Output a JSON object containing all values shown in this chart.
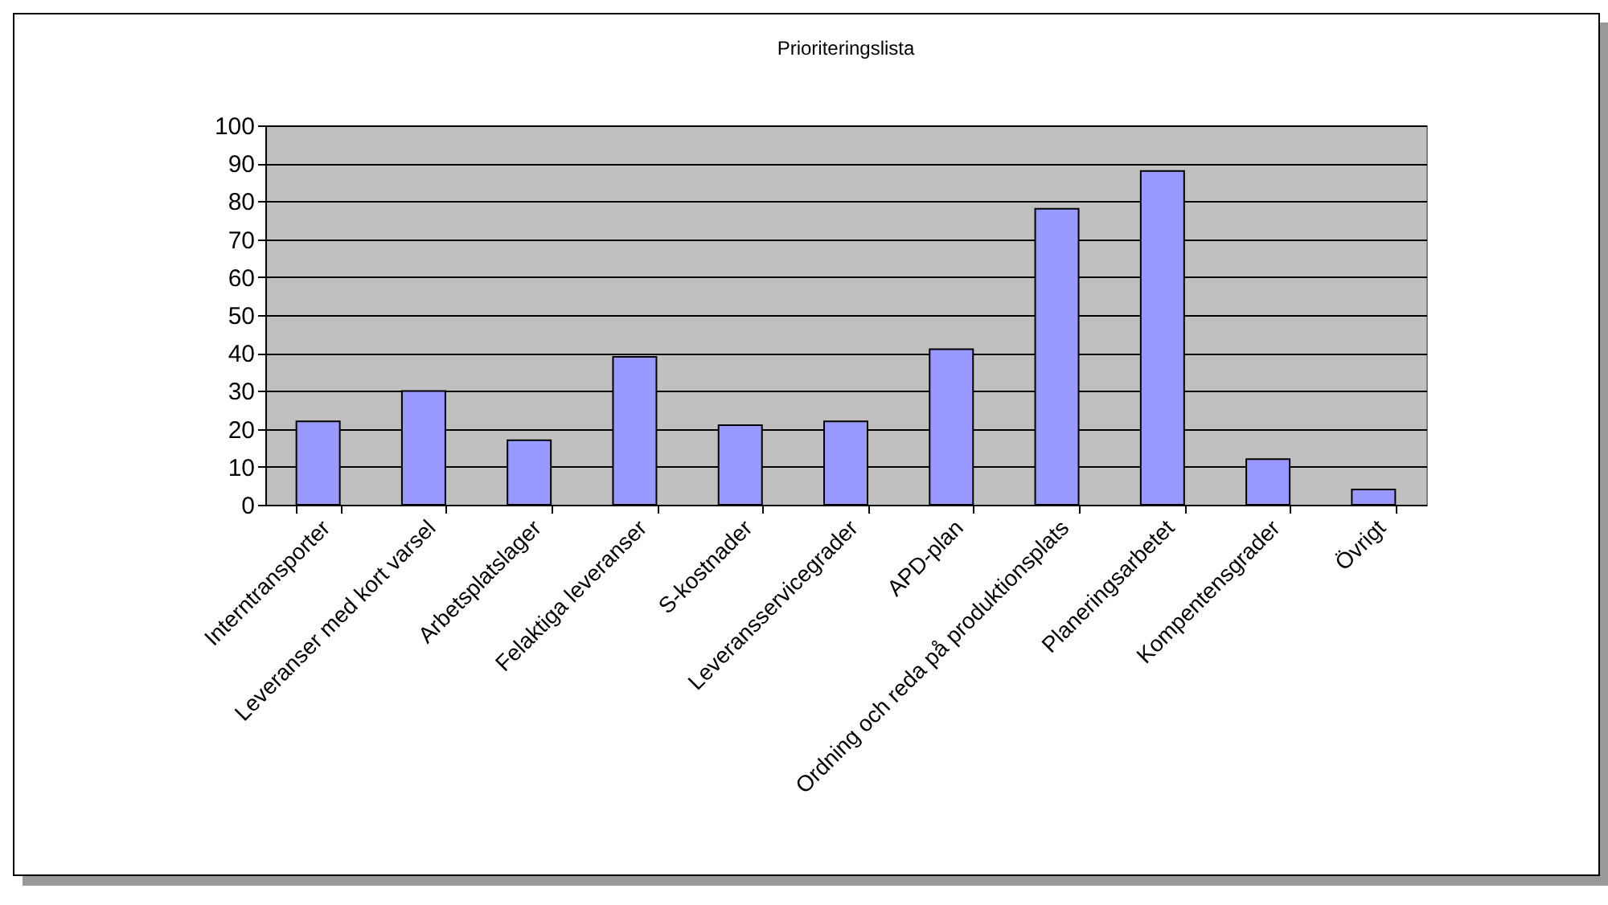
{
  "chart_data": {
    "type": "bar",
    "title": "Prioriteringslista",
    "categories": [
      "Interntransporter",
      "Leveranser med kort varsel",
      "Arbetsplatslager",
      "Felaktiga leveranser",
      "S-kostnader",
      "Leveransservicegrader",
      "APD-plan",
      "Ordning och reda på produktionsplats",
      "Planeringsarbetet",
      "Kompentensgrader",
      "Övrigt"
    ],
    "values": [
      22,
      30,
      17,
      39,
      21,
      22,
      41,
      78,
      88,
      12,
      4
    ],
    "color": "#9999ff",
    "ylim": [
      0,
      100
    ],
    "yticks": [
      0,
      10,
      20,
      30,
      40,
      50,
      60,
      70,
      80,
      90,
      100
    ],
    "grid": "y"
  }
}
